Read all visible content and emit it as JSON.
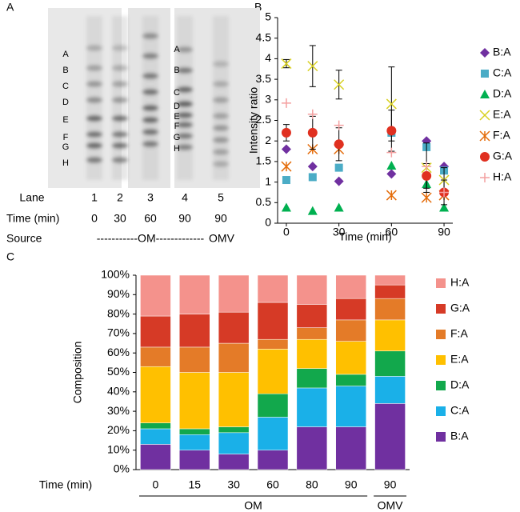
{
  "panels": [
    "A",
    "B",
    "C"
  ],
  "gel": {
    "band_labels": [
      "A",
      "B",
      "C",
      "D",
      "E",
      "F",
      "G",
      "H"
    ],
    "band_labels_right": [
      "A",
      "B",
      "C",
      "D",
      "E",
      "F",
      "G",
      "H"
    ],
    "lane_label": "Lane",
    "lanes": [
      "1",
      "2",
      "3",
      "4",
      "5"
    ],
    "time_label": "Time (min)",
    "times": [
      "0",
      "30",
      "60",
      "90",
      "90"
    ],
    "source_label": "Source",
    "sources": [
      "-----------OM-------------",
      "OMV"
    ]
  },
  "chart_data": [
    {
      "type": "scatter",
      "y_label": "Intensity ratio",
      "x_label": "Time (min)",
      "x": [
        0,
        15,
        30,
        60,
        80,
        90
      ],
      "xlim": [
        -5,
        95
      ],
      "xticks": [
        0,
        30,
        60,
        90
      ],
      "ylim": [
        0,
        5
      ],
      "yticks": [
        0,
        0.5,
        1,
        1.5,
        2,
        2.5,
        3,
        3.5,
        4,
        4.5,
        5
      ],
      "series": [
        {
          "name": "B:A",
          "color": "#7030a0",
          "marker": "diamond",
          "values": [
            1.8,
            1.38,
            1.02,
            1.2,
            2.0,
            1.38
          ]
        },
        {
          "name": "C:A",
          "color": "#4bacc6",
          "marker": "square",
          "values": [
            1.05,
            1.12,
            1.35,
            2.2,
            1.85,
            1.28
          ]
        },
        {
          "name": "D:A",
          "color": "#00b050",
          "marker": "triangle",
          "values": [
            0.38,
            0.3,
            0.38,
            1.4,
            0.95,
            0.38
          ]
        },
        {
          "name": "E:A",
          "color": "#d8d020",
          "marker": "x",
          "values": [
            3.88,
            3.82,
            3.37,
            2.9,
            1.35,
            1.05
          ],
          "errors": [
            0.1,
            0.5,
            0.35,
            0.9,
            0.6,
            0.3
          ]
        },
        {
          "name": "F:A",
          "color": "#e46c0a",
          "marker": "star",
          "values": [
            1.38,
            1.8,
            1.8,
            0.68,
            0.62,
            0.68
          ]
        },
        {
          "name": "G:A",
          "color": "#e03020",
          "marker": "circle",
          "values": [
            2.2,
            2.2,
            1.92,
            2.25,
            1.15,
            0.75
          ],
          "errors": [
            0.2,
            0.4,
            0.4,
            0.5,
            0.3,
            0.3
          ]
        },
        {
          "name": "H:A",
          "color": "#f4a0a0",
          "marker": "plus",
          "values": [
            2.92,
            2.65,
            2.38,
            1.72,
            1.38,
            0.75
          ]
        }
      ]
    },
    {
      "type": "bar",
      "stacked": true,
      "y_label": "Composition",
      "x_label": "Time (min)",
      "categories": [
        "0",
        "15",
        "30",
        "60",
        "80",
        "90",
        "90"
      ],
      "groups": [
        {
          "label": "OM",
          "size": 6
        },
        {
          "label": "OMV",
          "size": 1
        }
      ],
      "ylim": [
        0,
        100
      ],
      "yticks": [
        {
          "value": 0,
          "label": "0%"
        },
        {
          "value": 10,
          "label": "10%"
        },
        {
          "value": 20,
          "label": "20%"
        },
        {
          "value": 30,
          "label": "30%"
        },
        {
          "value": 40,
          "label": "40%"
        },
        {
          "value": 50,
          "label": "50%"
        },
        {
          "value": 60,
          "label": "60%"
        },
        {
          "value": 70,
          "label": "70%"
        },
        {
          "value": 80,
          "label": "80%"
        },
        {
          "value": 90,
          "label": "90%"
        },
        {
          "value": 100,
          "label": "100%"
        }
      ],
      "series": [
        {
          "name": "B:A",
          "color": "#7030a0",
          "values": [
            13,
            10,
            8,
            10,
            22,
            22,
            34
          ]
        },
        {
          "name": "C:A",
          "color": "#1ab0e8",
          "values": [
            8,
            8,
            11,
            17,
            20,
            21,
            14
          ]
        },
        {
          "name": "D:A",
          "color": "#12a84c",
          "values": [
            3,
            3,
            3,
            12,
            10,
            6,
            13
          ]
        },
        {
          "name": "E:A",
          "color": "#ffc000",
          "values": [
            29,
            29,
            28,
            23,
            15,
            17,
            16
          ]
        },
        {
          "name": "F:A",
          "color": "#e47b28",
          "values": [
            10,
            13,
            15,
            5,
            6,
            11,
            11
          ]
        },
        {
          "name": "G:A",
          "color": "#d63a26",
          "values": [
            16,
            17,
            16,
            19,
            12,
            11,
            7
          ]
        },
        {
          "name": "H:A",
          "color": "#f4928c",
          "values": [
            21,
            20,
            19,
            14,
            15,
            12,
            5
          ]
        }
      ]
    }
  ]
}
